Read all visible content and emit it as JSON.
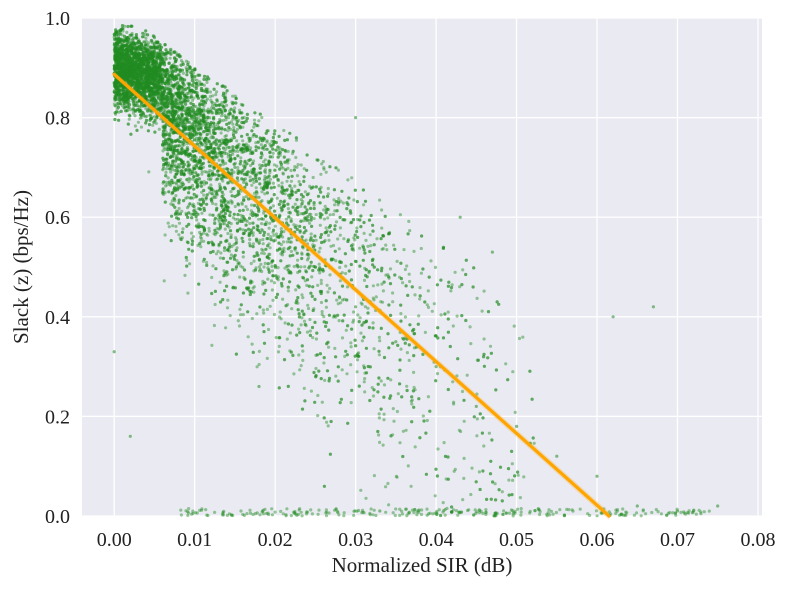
{
  "chart_data": {
    "type": "scatter",
    "title": "",
    "xlabel": "Normalized SIR (dB)",
    "ylabel": "Slack (z) (bps/Hz)",
    "xlim": [
      -0.004,
      0.0805
    ],
    "ylim": [
      0.0,
      1.0
    ],
    "xticks": [
      0.0,
      0.01,
      0.02,
      0.03,
      0.04,
      0.05,
      0.06,
      0.07,
      0.08
    ],
    "xtick_labels": [
      "0.00",
      "0.01",
      "0.02",
      "0.03",
      "0.04",
      "0.05",
      "0.06",
      "0.07",
      "0.08"
    ],
    "yticks": [
      0.0,
      0.2,
      0.4,
      0.6,
      0.8,
      1.0
    ],
    "ytick_labels": [
      "0.0",
      "0.2",
      "0.4",
      "0.6",
      "0.8",
      "1.0"
    ],
    "grid": true,
    "legend": "none",
    "series": [
      {
        "kind": "points",
        "color": "#228B22",
        "approx_count": 8000,
        "samples": [
          [
            0.0005,
            0.95
          ],
          [
            0.001,
            0.92
          ],
          [
            0.002,
            0.9
          ],
          [
            0.003,
            0.93
          ],
          [
            0.004,
            0.88
          ],
          [
            0.005,
            0.91
          ],
          [
            0.006,
            0.85
          ],
          [
            0.008,
            0.82
          ],
          [
            0.01,
            0.8
          ],
          [
            0.012,
            0.74
          ],
          [
            0.015,
            0.7
          ],
          [
            0.018,
            0.64
          ],
          [
            0.02,
            0.6
          ],
          [
            0.022,
            0.55
          ],
          [
            0.025,
            0.5
          ],
          [
            0.028,
            0.44
          ],
          [
            0.03,
            0.42
          ],
          [
            0.035,
            0.35
          ],
          [
            0.04,
            0.3
          ],
          [
            0.045,
            0.22
          ],
          [
            0.05,
            0.18
          ],
          [
            0.055,
            0.12
          ],
          [
            0.06,
            0.08
          ],
          [
            0.065,
            0.02
          ],
          [
            0.07,
            0.01
          ],
          [
            0.075,
            0.02
          ],
          [
            0.067,
            0.42
          ],
          [
            0.062,
            0.4
          ],
          [
            0.047,
            0.53
          ],
          [
            0.0,
            0.33
          ],
          [
            0.002,
            0.16
          ],
          [
            0.018,
            0.26
          ],
          [
            0.03,
            0.8
          ],
          [
            0.043,
            0.6
          ],
          [
            0.033,
            0.01
          ]
        ]
      },
      {
        "kind": "fit-line",
        "color": "#FFA500",
        "x": [
          0.0,
          0.0615
        ],
        "y": [
          0.887,
          0.0
        ]
      }
    ]
  }
}
